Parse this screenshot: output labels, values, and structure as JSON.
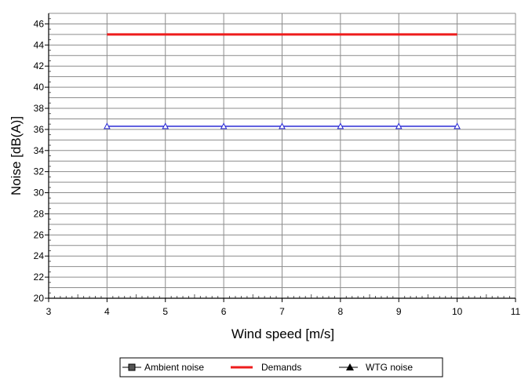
{
  "chart_data": {
    "type": "line",
    "xlabel": "Wind speed [m/s]",
    "ylabel": "Noise [dB(A)]",
    "xlim": [
      3,
      11
    ],
    "ylim": [
      20,
      47
    ],
    "x_ticks": [
      3,
      4,
      5,
      6,
      7,
      8,
      9,
      10,
      11
    ],
    "y_ticks": [
      20,
      22,
      24,
      26,
      28,
      30,
      32,
      34,
      36,
      38,
      40,
      42,
      44,
      46
    ],
    "grid": true,
    "legend_position": "bottom",
    "series": [
      {
        "name": "Ambient noise",
        "marker": "square",
        "color": "#000000",
        "x": [],
        "y": []
      },
      {
        "name": "Demands",
        "marker": "none",
        "color": "#ee1c1c",
        "x": [
          4,
          10
        ],
        "y": [
          45,
          45
        ]
      },
      {
        "name": "WTG noise",
        "marker": "triangle",
        "color": "#2a2ad4",
        "x": [
          4,
          5,
          6,
          7,
          8,
          9,
          10
        ],
        "y": [
          36.3,
          36.3,
          36.3,
          36.3,
          36.3,
          36.3,
          36.3
        ]
      }
    ]
  }
}
